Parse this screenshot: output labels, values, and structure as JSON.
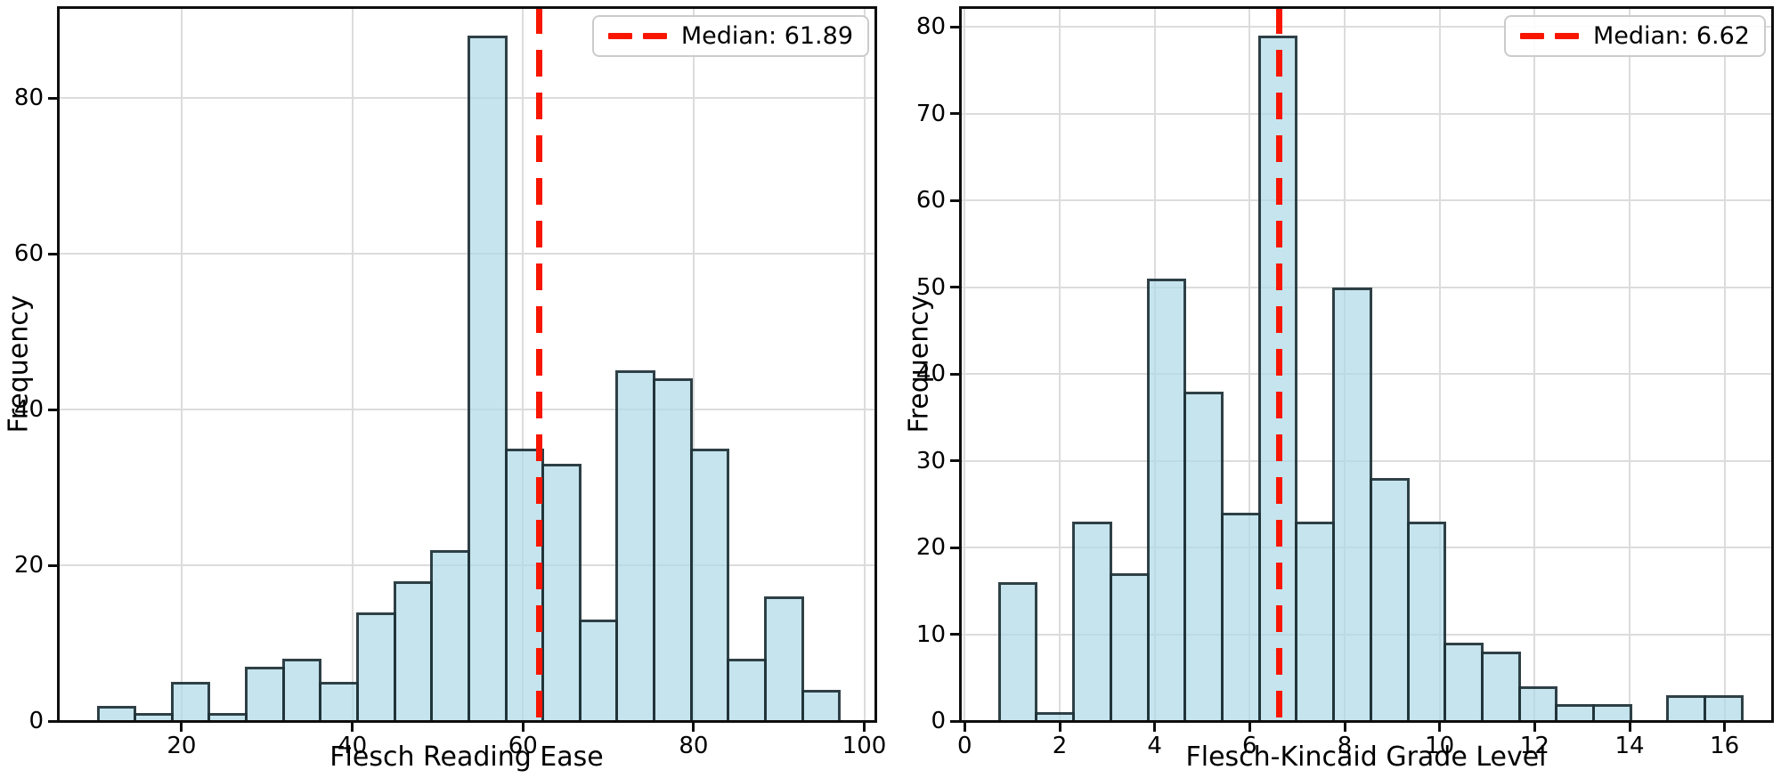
{
  "style": {
    "background": "#ffffff",
    "bar_fill": "#add8e6",
    "bar_fill_rgba": "rgba(173,216,230,0.7)",
    "bar_edge": "#000000",
    "bar_edge_rgba": "rgba(8,22,28,0.8)",
    "median_color": "#f81600",
    "grid_color": "#dcdcdc",
    "legend_border": "#cbcbcb"
  },
  "chart_data": [
    {
      "type": "bar",
      "kind": "histogram",
      "title": "",
      "xlabel": "Flesch Reading Ease",
      "ylabel": "Frequency",
      "legend": {
        "label": "Median: 61.89",
        "position": "upper right"
      },
      "median": 61.89,
      "bins_start": 10.2,
      "bin_width": 4.345,
      "values": [
        2,
        1,
        5,
        1,
        7,
        8,
        5,
        14,
        18,
        22,
        88,
        35,
        33,
        13,
        45,
        44,
        35,
        8,
        16,
        4
      ],
      "x_ticks": [
        20,
        40,
        60,
        80,
        100
      ],
      "y_ticks": [
        0,
        20,
        40,
        60,
        80
      ],
      "xlim": [
        5.5,
        101.3
      ],
      "ylim": [
        0,
        91.7
      ],
      "grid": true
    },
    {
      "type": "bar",
      "kind": "histogram",
      "title": "",
      "xlabel": "Flesch-Kincaid Grade Level",
      "ylabel": "Frequency",
      "legend": {
        "label": "Median: 6.62",
        "position": "upper right"
      },
      "median": 6.62,
      "bins_start": 0.73,
      "bin_width": 0.782,
      "values": [
        16,
        1,
        23,
        17,
        51,
        38,
        24,
        79,
        23,
        50,
        28,
        23,
        9,
        8,
        4,
        2,
        2,
        0,
        3,
        3
      ],
      "x_ticks": [
        0,
        2,
        4,
        6,
        8,
        10,
        12,
        14,
        16
      ],
      "y_ticks": [
        0,
        10,
        20,
        30,
        40,
        50,
        60,
        70,
        80
      ],
      "xlim": [
        -0.1,
        17.0
      ],
      "ylim": [
        0,
        82.3
      ],
      "grid": true
    }
  ]
}
